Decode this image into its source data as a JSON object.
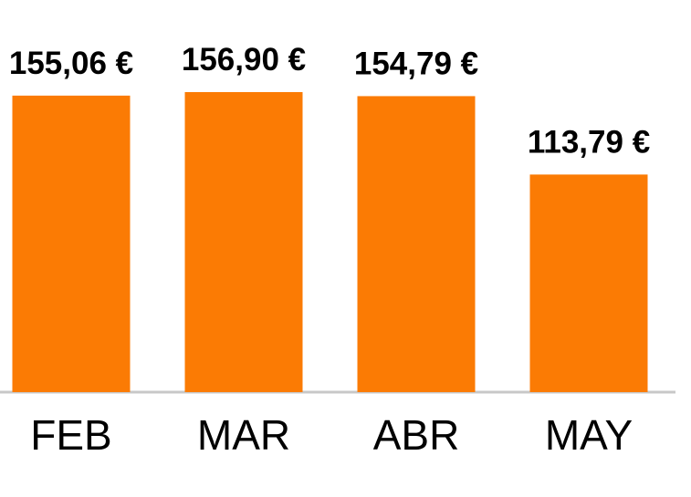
{
  "chart_data": {
    "type": "bar",
    "categories": [
      "FEB",
      "MAR",
      "ABR",
      "MAY"
    ],
    "values": [
      155.06,
      156.9,
      154.79,
      113.79
    ],
    "value_labels": [
      "155,06 €",
      "156,90 €",
      "154,79 €",
      "113,79 €"
    ],
    "title": "",
    "xlabel": "",
    "ylabel": "",
    "ylim": [
      0,
      156.9
    ],
    "grid": false,
    "legend": "none",
    "colors": {
      "bar": "#fb7b04",
      "axis": "#c8c8c8",
      "text": "#000000"
    }
  }
}
